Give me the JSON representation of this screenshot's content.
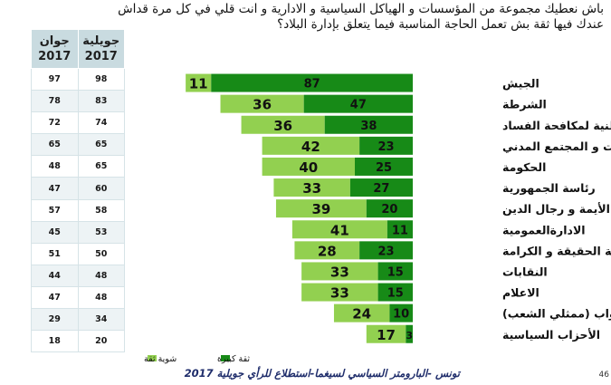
{
  "question": {
    "line1": "باش نعطيك مجموعة من المؤسسات و الهياكل السياسية و الادارية و انت قلي في كل مرة قداش",
    "line2": "عندك فيها ثقة بش تعمل الحاجة المناسبة فيما يتعلق بإدارة البلاد؟"
  },
  "side_table": {
    "headers": [
      {
        "line1": "جوان",
        "line2": "2017"
      },
      {
        "line1": "جويلية",
        "line2": "2017"
      }
    ],
    "rows": [
      {
        "june": "97",
        "july": "98"
      },
      {
        "june": "78",
        "july": "83"
      },
      {
        "june": "72",
        "july": "74"
      },
      {
        "june": "65",
        "july": "65"
      },
      {
        "june": "48",
        "july": "65"
      },
      {
        "june": "47",
        "july": "60"
      },
      {
        "june": "57",
        "july": "58"
      },
      {
        "june": "45",
        "july": "53"
      },
      {
        "june": "51",
        "july": "50"
      },
      {
        "june": "44",
        "july": "48"
      },
      {
        "june": "47",
        "july": "48"
      },
      {
        "june": "29",
        "july": "34"
      },
      {
        "june": "18",
        "july": "20"
      }
    ]
  },
  "chart_data": {
    "type": "bar",
    "orientation": "horizontal-diverging-stacked",
    "categories": [
      "الجيش",
      "الشرطة",
      "الهيئة الوطنية لمكافحة الفساد",
      "الجمعيات و المجتمع المدني",
      "الحكومة",
      "رئاسة الجمهورية",
      "الأيمة و رجال الدين",
      "الادارةالعمومية",
      "هيئة الحقيقة و الكرامة",
      "النقابات",
      "الاعلام",
      "مجلس النواب (ممثلي الشعب)",
      "الأحزاب السياسية"
    ],
    "series": [
      {
        "name": "ثقة كبيرة",
        "color": "#178a17",
        "values": [
          87,
          47,
          38,
          23,
          25,
          27,
          20,
          11,
          23,
          15,
          15,
          10,
          3
        ]
      },
      {
        "name": "شوية ثقة",
        "color": "#92d050",
        "values": [
          11,
          36,
          36,
          42,
          40,
          33,
          39,
          41,
          28,
          33,
          33,
          24,
          17
        ]
      }
    ],
    "legend_position": "bottom"
  },
  "footer": {
    "text": "تونس -البارومتر السياسي لسيغما-استطلاع للرأي جويلية 2017",
    "page_number": "46"
  }
}
